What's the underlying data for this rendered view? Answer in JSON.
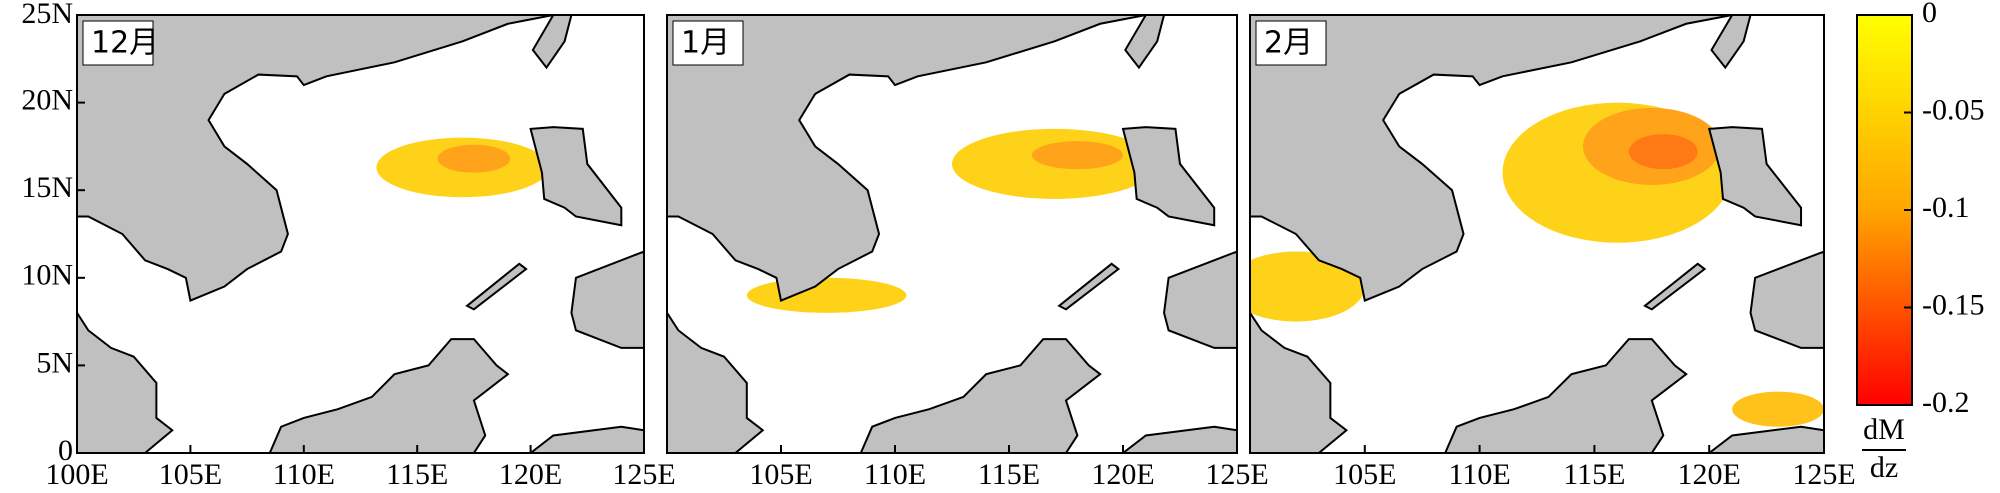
{
  "panels": [
    {
      "label": "12月"
    },
    {
      "label": "1月"
    },
    {
      "label": "2月"
    }
  ],
  "xlim": [
    100,
    125
  ],
  "ylim": [
    0,
    25
  ],
  "xticks": [
    {
      "value": 100,
      "label": "100E"
    },
    {
      "value": 105,
      "label": "105E"
    },
    {
      "value": 110,
      "label": "110E"
    },
    {
      "value": 115,
      "label": "115E"
    },
    {
      "value": 120,
      "label": "120E"
    },
    {
      "value": 125,
      "label": "125E"
    }
  ],
  "yticks": [
    0,
    {
      "value": 5,
      "label": "5N"
    },
    {
      "value": 10,
      "label": "10N"
    },
    {
      "value": 15,
      "label": "15N"
    },
    {
      "value": 20,
      "label": "20N"
    },
    {
      "value": 25,
      "label": "25N"
    }
  ],
  "colorbar": {
    "lim": [
      -0.2,
      0
    ],
    "ticks": [
      0,
      -0.05,
      -0.1,
      -0.15,
      -0.2
    ],
    "label_top": "dM",
    "label_bottom": "dz"
  }
}
